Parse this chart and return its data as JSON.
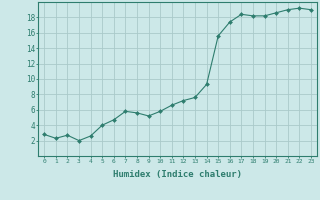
{
  "x": [
    0,
    1,
    2,
    3,
    4,
    5,
    6,
    7,
    8,
    9,
    10,
    11,
    12,
    13,
    14,
    15,
    16,
    17,
    18,
    19,
    20,
    21,
    22,
    23
  ],
  "y": [
    2.8,
    2.3,
    2.7,
    2.0,
    2.6,
    4.0,
    4.7,
    5.8,
    5.6,
    5.2,
    5.8,
    6.6,
    7.2,
    7.6,
    9.3,
    15.6,
    17.4,
    18.4,
    18.2,
    18.2,
    18.6,
    19.0,
    19.2,
    19.0
  ],
  "xlabel": "Humidex (Indice chaleur)",
  "xlim": [
    -0.5,
    23.5
  ],
  "ylim": [
    0,
    20
  ],
  "yticks": [
    2,
    4,
    6,
    8,
    10,
    12,
    14,
    16,
    18
  ],
  "xticks": [
    0,
    1,
    2,
    3,
    4,
    5,
    6,
    7,
    8,
    9,
    10,
    11,
    12,
    13,
    14,
    15,
    16,
    17,
    18,
    19,
    20,
    21,
    22,
    23
  ],
  "line_color": "#2e7d6e",
  "marker_color": "#2e7d6e",
  "bg_color": "#cce8e8",
  "grid_color": "#aacaca",
  "axis_color": "#2e7d6e",
  "label_color": "#2e7d6e"
}
